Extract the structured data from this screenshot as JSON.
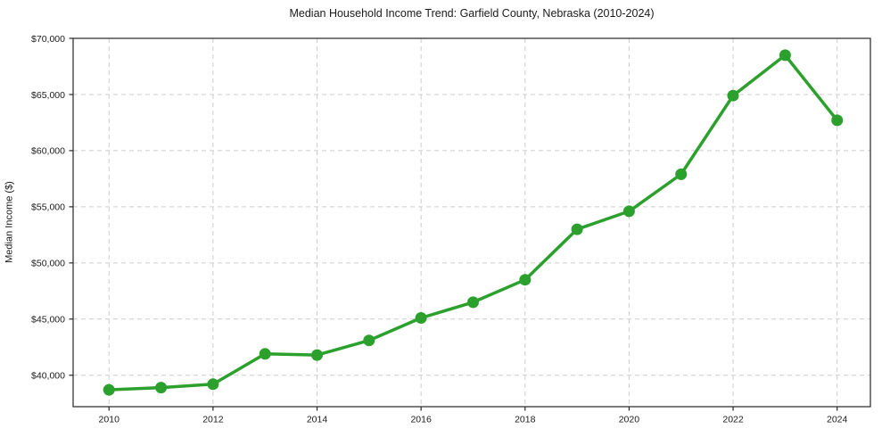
{
  "chart_data": {
    "type": "line",
    "title": "Median Household Income Trend: Garfield County, Nebraska (2010-2024)",
    "xlabel": "",
    "ylabel": "Median Income ($)",
    "x": [
      2010,
      2011,
      2012,
      2013,
      2014,
      2015,
      2016,
      2017,
      2018,
      2019,
      2020,
      2021,
      2022,
      2023,
      2024
    ],
    "series": [
      {
        "name": "Median Household Income",
        "values": [
          38700,
          38900,
          39200,
          41900,
          41800,
          43100,
          45100,
          46500,
          48500,
          53000,
          54600,
          57900,
          64900,
          68500,
          62700
        ]
      }
    ],
    "xticks": [
      2010,
      2012,
      2014,
      2016,
      2018,
      2020,
      2022,
      2024
    ],
    "yticks": [
      40000,
      45000,
      50000,
      55000,
      60000,
      65000,
      70000
    ],
    "ytick_prefix": "$",
    "xlim": [
      2009.31,
      2024.64
    ],
    "ylim": [
      37200,
      70000
    ],
    "grid": true,
    "grid_style": "dashed",
    "legend": false,
    "marker": "circle",
    "styles": {
      "line_color": "#2ca02c",
      "marker_color": "#2ca02c",
      "grid_color": "#cccccc",
      "spine_color": "#262626",
      "tick_color": "#262626",
      "text_color": "#1a1a1a",
      "background": "#ffffff"
    }
  }
}
